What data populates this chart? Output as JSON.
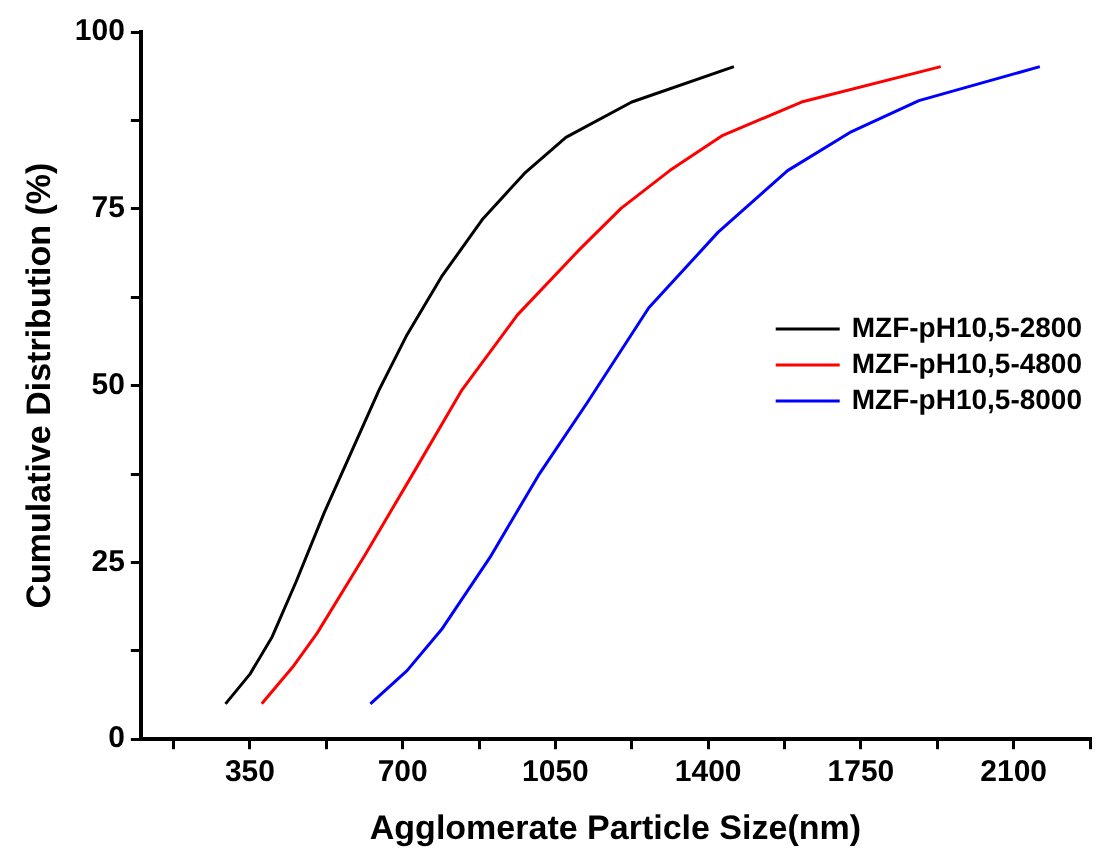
{
  "chart_data": {
    "type": "line",
    "xlabel": "Agglomerate Particle Size(nm)",
    "ylabel": "Cumulative Distribution (%)",
    "xlim": [
      100,
      2275
    ],
    "xticks": [
      {
        "value": 175,
        "label": null
      },
      350,
      {
        "value": 525,
        "label": null
      },
      700,
      {
        "value": 875,
        "label": null
      },
      1050,
      {
        "value": 1225,
        "label": null
      },
      1400,
      {
        "value": 1575,
        "label": null
      },
      1750,
      {
        "value": 1925,
        "label": null
      },
      2100,
      {
        "value": 2275,
        "label": null
      }
    ],
    "ylim": [
      0,
      100
    ],
    "yticks": [
      0,
      {
        "value": 12.5,
        "label": null
      },
      25,
      {
        "value": 37.5,
        "label": null
      },
      50,
      {
        "value": 62.5,
        "label": null
      },
      75,
      {
        "value": 87.5,
        "label": null
      },
      100
    ],
    "grid": false,
    "legend": "right",
    "marker": "none",
    "line_style": "solid",
    "series": [
      {
        "name": "MZF-pH10,5-2800",
        "color": "#000000",
        "x": [
          294,
          350,
          401,
          456,
          520,
          583,
          646,
          710,
          789,
          884,
          979,
          1074,
          1225,
          1459
        ],
        "values": [
          5,
          9.2,
          14.5,
          22.3,
          32,
          40.7,
          49.4,
          57.2,
          65.4,
          73.6,
          80,
          85.1,
          90.1,
          95.1
        ]
      },
      {
        "name": "MZF-pH10,5-4800",
        "color": "#ff0000",
        "x": [
          377,
          448,
          504,
          615,
          726,
          836,
          963,
          1106,
          1201,
          1312,
          1431,
          1614,
          1933
        ],
        "values": [
          5,
          10.2,
          15,
          26.2,
          37.8,
          49.4,
          60,
          69.3,
          75.1,
          80.4,
          85.3,
          90.1,
          95.1
        ]
      },
      {
        "name": "MZF-pH10,5-8000",
        "color": "#0000ff",
        "x": [
          626,
          710,
          789,
          900,
          1011,
          1122,
          1264,
          1423,
          1582,
          1725,
          1883,
          2160
        ],
        "values": [
          5,
          9.7,
          15.5,
          25.7,
          37.3,
          47.5,
          61,
          71.7,
          80.4,
          85.8,
          90.3,
          95.1
        ]
      }
    ]
  }
}
